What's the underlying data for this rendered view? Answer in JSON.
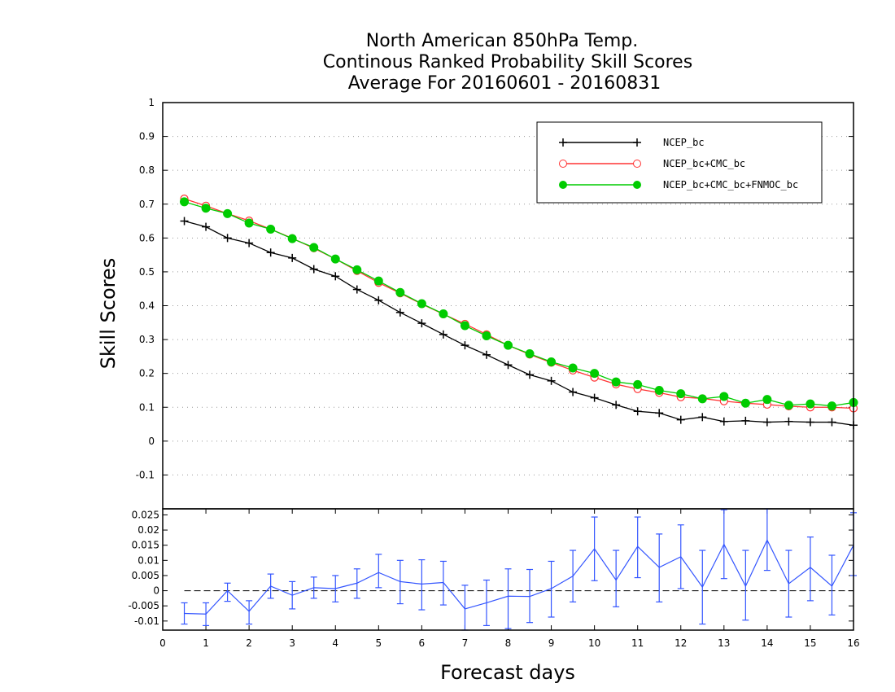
{
  "chart_data": [
    {
      "type": "line",
      "title": [
        "North American 850hPa Temp.",
        "Continous Ranked Probability Skill Scores",
        "Average For 20160601 - 20160831"
      ],
      "ylabel": "Skill Scores",
      "ylim": [
        -0.2,
        1
      ],
      "yticks": [
        "-0.1",
        "0",
        "0.1",
        "0.2",
        "0.3",
        "0.4",
        "0.5",
        "0.6",
        "0.7",
        "0.8",
        "0.9",
        "1"
      ],
      "grid": true,
      "legend_position": "top-right",
      "x": [
        0.5,
        1,
        1.5,
        2,
        2.5,
        3,
        3.5,
        4,
        4.5,
        5,
        5.5,
        6,
        6.5,
        7,
        7.5,
        8,
        8.5,
        9,
        9.5,
        10,
        10.5,
        11,
        11.5,
        12,
        12.5,
        13,
        13.5,
        14,
        14.5,
        15,
        15.5,
        16
      ],
      "series": [
        {
          "name": "NCEP_bc",
          "color": "#000000",
          "marker": "plus",
          "values": [
            0.65,
            0.633,
            0.6,
            0.585,
            0.557,
            0.541,
            0.508,
            0.487,
            0.448,
            0.416,
            0.38,
            0.348,
            0.315,
            0.283,
            0.255,
            0.225,
            0.196,
            0.178,
            0.145,
            0.128,
            0.107,
            0.088,
            0.083,
            0.063,
            0.071,
            0.058,
            0.06,
            0.056,
            0.058,
            0.056,
            0.056,
            0.047
          ]
        },
        {
          "name": "NCEP_bc+CMC_bc",
          "color": "#ff3333",
          "marker": "open-circle",
          "values": [
            0.716,
            0.695,
            0.672,
            0.651,
            0.626,
            0.599,
            0.57,
            0.538,
            0.503,
            0.468,
            0.437,
            0.405,
            0.375,
            0.346,
            0.315,
            0.283,
            0.256,
            0.232,
            0.209,
            0.188,
            0.168,
            0.154,
            0.143,
            0.13,
            0.126,
            0.118,
            0.112,
            0.108,
            0.103,
            0.1,
            0.1,
            0.097
          ]
        },
        {
          "name": "NCEP_bc+CMC_bc+FNMOC_bc",
          "color": "#00cc00",
          "marker": "filled-circle",
          "values": [
            0.707,
            0.688,
            0.672,
            0.644,
            0.626,
            0.598,
            0.572,
            0.538,
            0.506,
            0.473,
            0.439,
            0.406,
            0.376,
            0.341,
            0.311,
            0.283,
            0.258,
            0.234,
            0.216,
            0.2,
            0.175,
            0.167,
            0.15,
            0.14,
            0.125,
            0.132,
            0.112,
            0.123,
            0.106,
            0.11,
            0.104,
            0.114
          ]
        }
      ]
    },
    {
      "type": "line",
      "xlabel": "Forecast days",
      "xlim": [
        0,
        16
      ],
      "xticks": [
        "0",
        "1",
        "2",
        "3",
        "4",
        "5",
        "6",
        "7",
        "8",
        "9",
        "10",
        "11",
        "12",
        "13",
        "14",
        "15",
        "16"
      ],
      "ylim": [
        -0.013,
        0.027
      ],
      "yticks": [
        "-0.01",
        "-0.005",
        "0",
        "0.005",
        "0.01",
        "0.015",
        "0.02",
        "0.025"
      ],
      "series": [
        {
          "name": "",
          "color": "#3355ff",
          "marker": "error-bar",
          "x": [
            0.5,
            1,
            1.5,
            2,
            2.5,
            3,
            3.5,
            4,
            4.5,
            5,
            5.5,
            6,
            6.5,
            7,
            7.5,
            8,
            8.5,
            9,
            9.5,
            10,
            10.5,
            11,
            11.5,
            12,
            12.5,
            13,
            13.5,
            14,
            14.5,
            15,
            15.5,
            16
          ],
          "values": [
            -0.0075,
            -0.0077,
            0.0,
            -0.0068,
            0.0015,
            -0.0015,
            0.001,
            0.0007,
            0.0025,
            0.006,
            0.003,
            0.0022,
            0.0027,
            -0.006,
            -0.004,
            -0.0018,
            -0.0019,
            0.0007,
            0.0048,
            0.0138,
            0.0035,
            0.0146,
            0.0077,
            0.0112,
            0.0012,
            0.0153,
            0.0015,
            0.0167,
            0.0023,
            0.0077,
            0.0015,
            0.015
          ],
          "lower": [
            -0.011,
            -0.0115,
            -0.0035,
            -0.011,
            -0.0025,
            -0.006,
            -0.0025,
            -0.0037,
            -0.0025,
            0.001,
            -0.0043,
            -0.0063,
            -0.0047,
            -0.0145,
            -0.0115,
            -0.0125,
            -0.0105,
            -0.0087,
            -0.0037,
            0.0033,
            -0.0053,
            0.0043,
            -0.0037,
            0.0007,
            -0.011,
            0.004,
            -0.0097,
            0.0067,
            -0.0087,
            -0.0033,
            -0.008,
            0.005
          ],
          "upper": [
            -0.004,
            -0.004,
            0.0025,
            -0.0033,
            0.0055,
            0.003,
            0.0045,
            0.005,
            0.0072,
            0.012,
            0.01,
            0.0102,
            0.0097,
            0.0018,
            0.0035,
            0.0072,
            0.007,
            0.0097,
            0.0133,
            0.0243,
            0.0133,
            0.0243,
            0.0187,
            0.0217,
            0.0133,
            0.0267,
            0.0133,
            0.0273,
            0.0133,
            0.0177,
            0.0117,
            0.0257
          ]
        }
      ],
      "reference_line": 0
    }
  ],
  "colors": {
    "grid": "#999999",
    "axis": "#000000"
  }
}
